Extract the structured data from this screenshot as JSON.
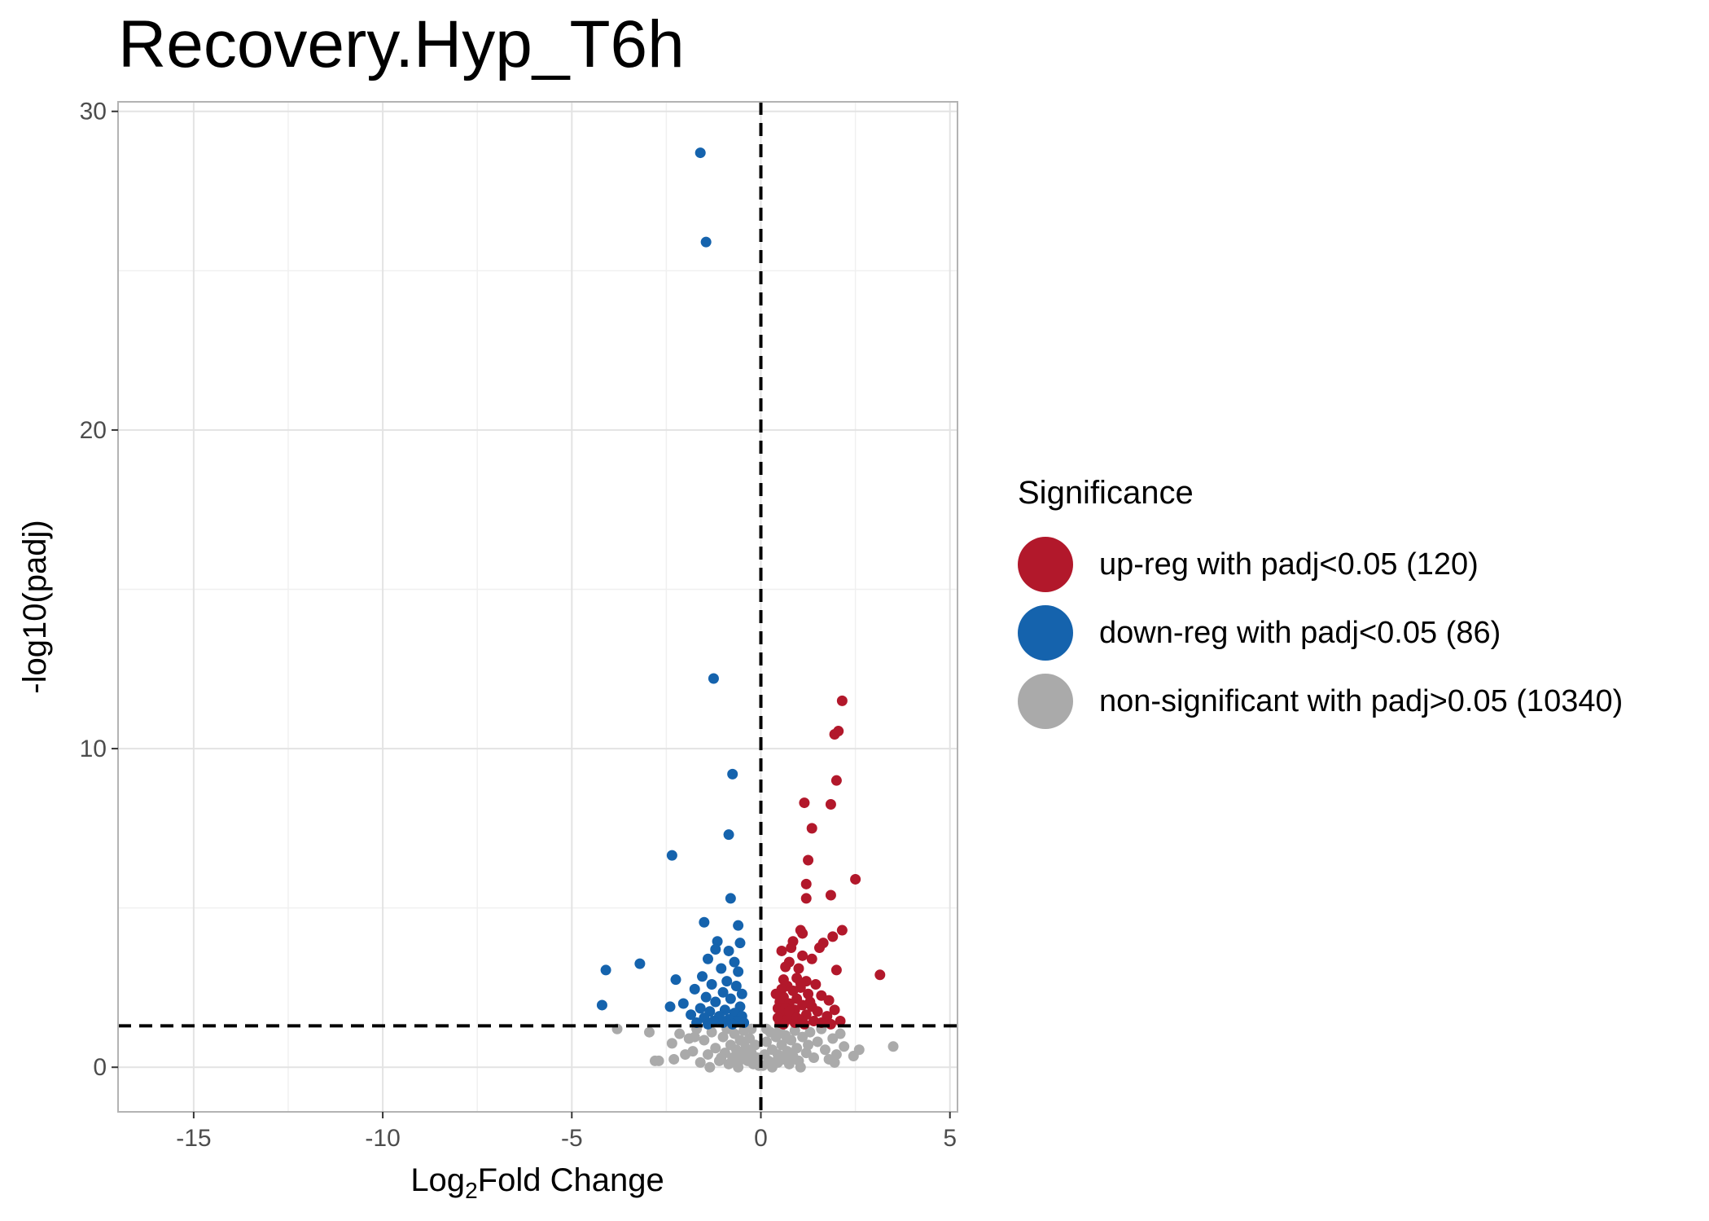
{
  "chart_data": {
    "type": "scatter",
    "title": "Recovery.Hyp_T6h",
    "xlabel_main": "Log",
    "xlabel_sub": "2",
    "xlabel_rest": "Fold Change",
    "ylabel": "-log10(padj)",
    "xlim": [
      -17,
      5.2
    ],
    "ylim": [
      -1.4,
      30.3
    ],
    "x_ticks": [
      -15,
      -10,
      -5,
      0,
      5
    ],
    "y_ticks": [
      0,
      10,
      20,
      30
    ],
    "grid": true,
    "thresholds": {
      "vline_x": 0,
      "hline_y": 1.3
    },
    "legend": {
      "title": "Significance",
      "position": "right",
      "entries": [
        {
          "label": "up-reg with padj<0.05 (120)",
          "color": "#b2182b"
        },
        {
          "label": "down-reg with padj<0.05 (86)",
          "color": "#1563ad"
        },
        {
          "label": "non-significant with padj>0.05 (10340)",
          "color": "#aaaaaa"
        }
      ]
    },
    "series": [
      {
        "name": "up-reg with padj<0.05 (120)",
        "color": "#b2182b",
        "points": [
          [
            2.15,
            11.5
          ],
          [
            2.05,
            10.55
          ],
          [
            1.95,
            10.45
          ],
          [
            2.0,
            9.0
          ],
          [
            1.15,
            8.3
          ],
          [
            1.85,
            8.25
          ],
          [
            1.35,
            7.5
          ],
          [
            1.25,
            6.5
          ],
          [
            2.5,
            5.9
          ],
          [
            1.2,
            5.75
          ],
          [
            1.85,
            5.4
          ],
          [
            1.2,
            5.3
          ],
          [
            2.15,
            4.3
          ],
          [
            1.05,
            4.3
          ],
          [
            1.1,
            4.2
          ],
          [
            1.9,
            4.1
          ],
          [
            1.65,
            3.9
          ],
          [
            0.85,
            3.95
          ],
          [
            0.8,
            3.75
          ],
          [
            0.55,
            3.65
          ],
          [
            1.55,
            3.75
          ],
          [
            1.1,
            3.5
          ],
          [
            1.35,
            3.4
          ],
          [
            0.75,
            3.3
          ],
          [
            0.65,
            3.15
          ],
          [
            1.0,
            3.1
          ],
          [
            2.0,
            3.05
          ],
          [
            3.15,
            2.9
          ],
          [
            0.95,
            2.8
          ],
          [
            0.6,
            2.75
          ],
          [
            1.2,
            2.7
          ],
          [
            1.45,
            2.6
          ],
          [
            0.7,
            2.55
          ],
          [
            1.05,
            2.5
          ],
          [
            0.55,
            2.45
          ],
          [
            0.85,
            2.4
          ],
          [
            1.25,
            2.3
          ],
          [
            1.6,
            2.25
          ],
          [
            0.6,
            2.2
          ],
          [
            0.95,
            2.15
          ],
          [
            1.8,
            2.1
          ],
          [
            0.5,
            2.05
          ],
          [
            0.75,
            2.0
          ],
          [
            1.1,
            1.95
          ],
          [
            1.35,
            1.9
          ],
          [
            0.45,
            1.85
          ],
          [
            0.65,
            1.85
          ],
          [
            0.9,
            1.8
          ],
          [
            1.95,
            1.8
          ],
          [
            1.5,
            1.75
          ],
          [
            0.55,
            1.7
          ],
          [
            0.8,
            1.65
          ],
          [
            1.2,
            1.65
          ],
          [
            1.75,
            1.6
          ],
          [
            0.45,
            1.55
          ],
          [
            0.7,
            1.5
          ],
          [
            1.0,
            1.5
          ],
          [
            1.4,
            1.45
          ],
          [
            2.1,
            1.45
          ],
          [
            0.5,
            1.4
          ],
          [
            0.9,
            1.4
          ],
          [
            1.6,
            1.4
          ],
          [
            0.6,
            1.35
          ],
          [
            1.15,
            1.35
          ],
          [
            1.85,
            1.35
          ],
          [
            0.4,
            2.3
          ],
          [
            1.05,
            2.65
          ],
          [
            0.75,
            1.75
          ],
          [
            1.3,
            2.05
          ],
          [
            0.95,
            1.55
          ]
        ]
      },
      {
        "name": "down-reg with padj<0.05 (86)",
        "color": "#1563ad",
        "points": [
          [
            -1.6,
            28.7
          ],
          [
            -1.45,
            25.9
          ],
          [
            -1.25,
            12.2
          ],
          [
            -0.75,
            9.2
          ],
          [
            -0.85,
            7.3
          ],
          [
            -2.35,
            6.65
          ],
          [
            -0.8,
            5.3
          ],
          [
            -1.5,
            4.55
          ],
          [
            -0.6,
            4.45
          ],
          [
            -1.15,
            3.95
          ],
          [
            -0.55,
            3.9
          ],
          [
            -1.2,
            3.7
          ],
          [
            -0.85,
            3.65
          ],
          [
            -1.4,
            3.4
          ],
          [
            -0.7,
            3.3
          ],
          [
            -3.2,
            3.25
          ],
          [
            -4.1,
            3.05
          ],
          [
            -1.05,
            3.1
          ],
          [
            -0.6,
            3.0
          ],
          [
            -1.55,
            2.85
          ],
          [
            -2.25,
            2.75
          ],
          [
            -0.9,
            2.7
          ],
          [
            -1.3,
            2.6
          ],
          [
            -0.65,
            2.55
          ],
          [
            -1.75,
            2.45
          ],
          [
            -1.0,
            2.35
          ],
          [
            -0.5,
            2.3
          ],
          [
            -1.45,
            2.2
          ],
          [
            -0.8,
            2.15
          ],
          [
            -1.2,
            2.05
          ],
          [
            -2.05,
            2.0
          ],
          [
            -4.2,
            1.95
          ],
          [
            -2.4,
            1.9
          ],
          [
            -0.55,
            1.9
          ],
          [
            -1.6,
            1.85
          ],
          [
            -0.95,
            1.8
          ],
          [
            -1.35,
            1.75
          ],
          [
            -0.7,
            1.7
          ],
          [
            -1.85,
            1.65
          ],
          [
            -1.1,
            1.6
          ],
          [
            -0.5,
            1.6
          ],
          [
            -1.5,
            1.55
          ],
          [
            -0.85,
            1.5
          ],
          [
            -1.25,
            1.45
          ],
          [
            -0.6,
            1.45
          ],
          [
            -1.7,
            1.4
          ],
          [
            -1.0,
            1.4
          ],
          [
            -0.45,
            1.4
          ],
          [
            -1.4,
            1.35
          ],
          [
            -0.75,
            1.35
          ]
        ]
      },
      {
        "name": "non-significant with padj>0.05 (10340)",
        "color": "#aaaaaa",
        "points": [
          [
            -3.8,
            1.2
          ],
          [
            -2.95,
            1.1
          ],
          [
            -2.8,
            0.2
          ],
          [
            -2.7,
            0.2
          ],
          [
            -2.35,
            0.75
          ],
          [
            -2.15,
            1.05
          ],
          [
            -2.0,
            0.4
          ],
          [
            -1.9,
            0.9
          ],
          [
            -1.8,
            0.5
          ],
          [
            -1.7,
            1.2
          ],
          [
            -1.6,
            0.15
          ],
          [
            -1.5,
            0.85
          ],
          [
            -1.4,
            0.4
          ],
          [
            -1.3,
            1.1
          ],
          [
            -1.2,
            0.6
          ],
          [
            -1.1,
            0.2
          ],
          [
            -1.0,
            0.95
          ],
          [
            -0.95,
            0.45
          ],
          [
            -0.9,
            1.2
          ],
          [
            -0.85,
            0.1
          ],
          [
            -0.8,
            0.7
          ],
          [
            -0.75,
            0.3
          ],
          [
            -0.7,
            1.05
          ],
          [
            -0.65,
            0.55
          ],
          [
            -0.6,
            0.15
          ],
          [
            -0.55,
            0.85
          ],
          [
            -0.5,
            0.35
          ],
          [
            -0.45,
            1.15
          ],
          [
            -0.4,
            0.6
          ],
          [
            -0.35,
            0.2
          ],
          [
            -0.3,
            0.9
          ],
          [
            -0.25,
            0.45
          ],
          [
            -0.2,
            0.1
          ],
          [
            -0.15,
            0.7
          ],
          [
            -0.1,
            0.3
          ],
          [
            -0.05,
            0.05
          ],
          [
            0.05,
            0.05
          ],
          [
            0.1,
            0.4
          ],
          [
            0.15,
            0.8
          ],
          [
            0.2,
            0.2
          ],
          [
            0.25,
            1.1
          ],
          [
            0.3,
            0.55
          ],
          [
            0.35,
            0.15
          ],
          [
            0.4,
            0.95
          ],
          [
            0.45,
            0.4
          ],
          [
            0.5,
            1.2
          ],
          [
            0.55,
            0.7
          ],
          [
            0.6,
            0.25
          ],
          [
            0.65,
            1.0
          ],
          [
            0.7,
            0.5
          ],
          [
            0.75,
            0.1
          ],
          [
            0.8,
            0.85
          ],
          [
            0.85,
            0.35
          ],
          [
            0.9,
            1.15
          ],
          [
            0.95,
            0.6
          ],
          [
            1.0,
            0.2
          ],
          [
            1.1,
            0.95
          ],
          [
            1.2,
            0.45
          ],
          [
            1.3,
            1.1
          ],
          [
            1.4,
            0.3
          ],
          [
            1.5,
            0.8
          ],
          [
            1.6,
            1.2
          ],
          [
            1.7,
            0.55
          ],
          [
            1.8,
            0.25
          ],
          [
            1.9,
            0.9
          ],
          [
            2.0,
            0.4
          ],
          [
            2.1,
            1.05
          ],
          [
            2.2,
            0.65
          ],
          [
            2.45,
            0.35
          ],
          [
            2.6,
            0.55
          ],
          [
            3.5,
            0.65
          ],
          [
            -1.35,
            0.0
          ],
          [
            -0.6,
            0.0
          ],
          [
            0.3,
            0.0
          ],
          [
            1.05,
            0.0
          ],
          [
            -2.3,
            0.25
          ],
          [
            1.95,
            0.15
          ],
          [
            -1.75,
            0.95
          ],
          [
            1.25,
            0.7
          ],
          [
            -0.25,
            1.2
          ],
          [
            0.15,
            1.2
          ],
          [
            -1.05,
            0.3
          ],
          [
            0.7,
            0.9
          ],
          [
            -0.45,
            0.8
          ],
          [
            0.45,
            0.15
          ]
        ]
      }
    ]
  }
}
